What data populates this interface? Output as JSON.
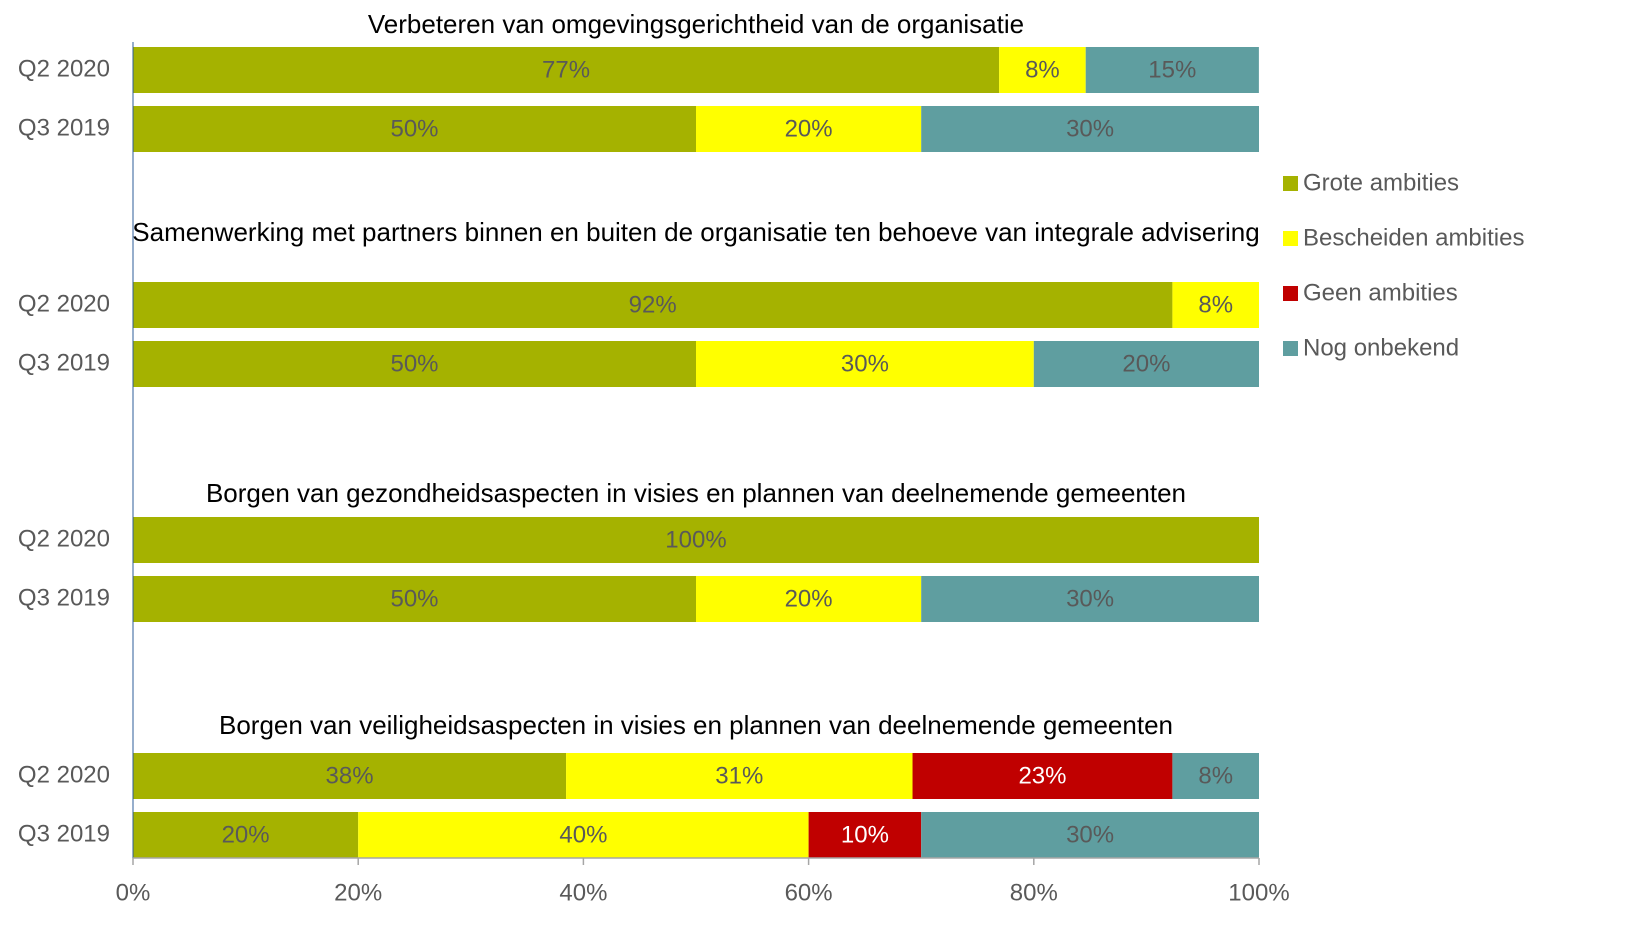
{
  "chart_data": {
    "type": "stacked-bar-h",
    "series": [
      {
        "name": "Grote ambities",
        "color": "#a5b200",
        "label_color": "#595959"
      },
      {
        "name": "Bescheiden ambities",
        "color": "#ffff00",
        "label_color": "#595959"
      },
      {
        "name": "Geen ambities",
        "color": "#c00000",
        "label_color": "#ffffff"
      },
      {
        "name": "Nog onbekend",
        "color": "#5f9ea0",
        "label_color": "#595959"
      }
    ],
    "groups": [
      {
        "title": "Verbeteren van omgevingsgerichtheid van de organisatie",
        "categories": [
          "Q2 2020",
          "Q3 2019"
        ],
        "values": [
          [
            76.92,
            7.69,
            null,
            15.38
          ],
          [
            50,
            20,
            null,
            30
          ]
        ],
        "value_labels": [
          [
            "77%",
            "8%",
            null,
            "15%"
          ],
          [
            "50%",
            "20%",
            null,
            "30%"
          ]
        ]
      },
      {
        "title": "Samenwerking met partners binnen en buiten de organisatie ten behoeve van integrale advisering",
        "categories": [
          "Q2 2020",
          "Q3 2019"
        ],
        "values": [
          [
            92.31,
            7.69,
            null,
            null
          ],
          [
            50,
            30,
            null,
            20
          ]
        ],
        "value_labels": [
          [
            "92%",
            "8%",
            null,
            null
          ],
          [
            "50%",
            "30%",
            null,
            "20%"
          ]
        ]
      },
      {
        "title": "Borgen van gezondheidsaspecten in visies en plannen van deelnemende gemeenten",
        "categories": [
          "Q2 2020",
          "Q3 2019"
        ],
        "values": [
          [
            100,
            null,
            null,
            null
          ],
          [
            50,
            20,
            null,
            30
          ]
        ],
        "value_labels": [
          [
            "100%",
            null,
            null,
            null
          ],
          [
            "50%",
            "20%",
            null,
            "30%"
          ]
        ]
      },
      {
        "title": "Borgen van veiligheidsaspecten in visies en plannen van deelnemende gemeenten",
        "categories": [
          "Q2 2020",
          "Q3 2019"
        ],
        "values": [
          [
            38.46,
            30.77,
            23.08,
            7.69
          ],
          [
            20,
            40,
            10,
            30
          ]
        ],
        "value_labels": [
          [
            "38%",
            "31%",
            "23%",
            "8%"
          ],
          [
            "20%",
            "40%",
            "10%",
            "30%"
          ]
        ]
      }
    ],
    "xlim": [
      0,
      100
    ],
    "xticks": [
      {
        "value": 0,
        "label": "0%"
      },
      {
        "value": 20,
        "label": "20%"
      },
      {
        "value": 40,
        "label": "40%"
      },
      {
        "value": 60,
        "label": "60%"
      },
      {
        "value": 80,
        "label": "80%"
      },
      {
        "value": 100,
        "label": "100%"
      }
    ],
    "legend": "right"
  }
}
